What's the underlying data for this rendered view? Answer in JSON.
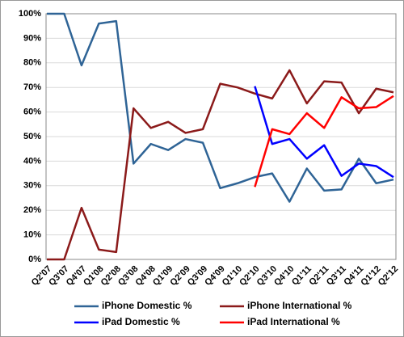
{
  "chart_data": {
    "type": "line",
    "categories": [
      "Q2'07",
      "Q3'07",
      "Q4'07",
      "Q1'08",
      "Q2'08",
      "Q3'08",
      "Q4'08",
      "Q1'09",
      "Q2'09",
      "Q3'09",
      "Q4'09",
      "Q1'10",
      "Q2'10",
      "Q3'10",
      "Q4'10",
      "Q1'11",
      "Q2'11",
      "Q3'11",
      "Q4'11",
      "Q1'12",
      "Q2'12"
    ],
    "series": [
      {
        "name": "iPhone Domestic %",
        "color": "#2f6496",
        "values": [
          100,
          100,
          79,
          96,
          97,
          39,
          47,
          44.5,
          49,
          47.5,
          29,
          31,
          33.5,
          35,
          23.5,
          37,
          28,
          28.5,
          41,
          31,
          32.5
        ]
      },
      {
        "name": "iPhone International %",
        "color": "#8b1a1a",
        "values": [
          0,
          0,
          21,
          4,
          3,
          61.5,
          53.5,
          56,
          51.5,
          53,
          71.5,
          70,
          67.5,
          65.5,
          77,
          63.5,
          72.5,
          72,
          59.5,
          69.5,
          68
        ]
      },
      {
        "name": "iPad Domestic %",
        "color": "#0000ff",
        "values": [
          null,
          null,
          null,
          null,
          null,
          null,
          null,
          null,
          null,
          null,
          null,
          null,
          70.5,
          47,
          49,
          41,
          46.5,
          34,
          39,
          38,
          33.5
        ]
      },
      {
        "name": "iPad International %",
        "color": "#ff0000",
        "values": [
          null,
          null,
          null,
          null,
          null,
          null,
          null,
          null,
          null,
          null,
          null,
          null,
          29.5,
          53,
          51,
          59.5,
          53.5,
          66,
          61.5,
          62,
          66.5
        ]
      }
    ],
    "ylim": [
      0,
      100
    ],
    "yticks": [
      {
        "value": 0,
        "label": "0%"
      },
      {
        "value": 10,
        "label": "10%"
      },
      {
        "value": 20,
        "label": "20%"
      },
      {
        "value": 30,
        "label": "30%"
      },
      {
        "value": 40,
        "label": "40%"
      },
      {
        "value": 50,
        "label": "50%"
      },
      {
        "value": 60,
        "label": "60%"
      },
      {
        "value": 70,
        "label": "70%"
      },
      {
        "value": 80,
        "label": "80%"
      },
      {
        "value": 90,
        "label": "90%"
      },
      {
        "value": 100,
        "label": "100%"
      }
    ],
    "grid": true
  }
}
